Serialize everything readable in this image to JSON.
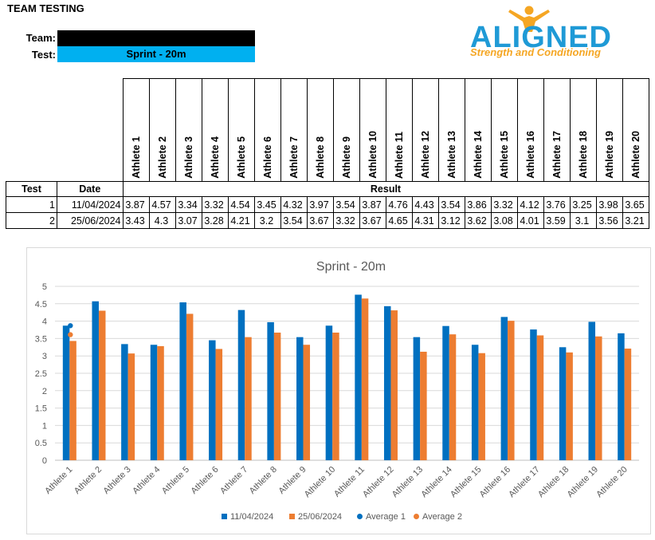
{
  "page": {
    "heading": "TEAM TESTING",
    "team_label": "Team:",
    "test_label": "Test:",
    "test_value": "Sprint - 20m",
    "logo_text": "ALIGNED",
    "logo_subtitle": "Strength and Conditioning"
  },
  "table": {
    "col_test": "Test",
    "col_date": "Date",
    "col_result": "Result",
    "athletes": [
      "Athlete 1",
      "Athlete 2",
      "Athlete 3",
      "Athlete 4",
      "Athlete 5",
      "Athlete 6",
      "Athlete 7",
      "Athlete 8",
      "Athlete 9",
      "Athlete 10",
      "Athlete 11",
      "Athlete 12",
      "Athlete 13",
      "Athlete 14",
      "Athlete 15",
      "Athlete 16",
      "Athlete 17",
      "Athlete 18",
      "Athlete 19",
      "Athlete 20"
    ],
    "rows": [
      {
        "test": "1",
        "date": "11/04/2024",
        "values": [
          "3.87",
          "4.57",
          "3.34",
          "3.32",
          "4.54",
          "3.45",
          "4.32",
          "3.97",
          "3.54",
          "3.87",
          "4.76",
          "4.43",
          "3.54",
          "3.86",
          "3.32",
          "4.12",
          "3.76",
          "3.25",
          "3.98",
          "3.65"
        ]
      },
      {
        "test": "2",
        "date": "25/06/2024",
        "values": [
          "3.43",
          "4.3",
          "3.07",
          "3.28",
          "4.21",
          "3.2",
          "3.54",
          "3.67",
          "3.32",
          "3.67",
          "4.65",
          "4.31",
          "3.12",
          "3.62",
          "3.08",
          "4.01",
          "3.59",
          "3.1",
          "3.56",
          "3.21"
        ]
      }
    ]
  },
  "chart_data": {
    "type": "bar",
    "title": "Sprint - 20m",
    "categories": [
      "Athlete 1",
      "Athlete 2",
      "Athlete 3",
      "Athlete 4",
      "Athlete 5",
      "Athlete 6",
      "Athlete 7",
      "Athlete 8",
      "Athlete 9",
      "Athlete 10",
      "Athlete 11",
      "Athlete 12",
      "Athlete 13",
      "Athlete 14",
      "Athlete 15",
      "Athlete 16",
      "Athlete 17",
      "Athlete 18",
      "Athlete 19",
      "Athlete 20"
    ],
    "series": [
      {
        "name": "11/04/2024",
        "kind": "bar",
        "color": "#0070c0",
        "values": [
          3.87,
          4.57,
          3.34,
          3.32,
          4.54,
          3.45,
          4.32,
          3.97,
          3.54,
          3.87,
          4.76,
          4.43,
          3.54,
          3.86,
          3.32,
          4.12,
          3.76,
          3.25,
          3.98,
          3.65
        ]
      },
      {
        "name": "25/06/2024",
        "kind": "bar",
        "color": "#ed7d31",
        "values": [
          3.43,
          4.3,
          3.07,
          3.28,
          4.21,
          3.2,
          3.54,
          3.67,
          3.32,
          3.67,
          4.65,
          4.31,
          3.12,
          3.62,
          3.08,
          4.01,
          3.59,
          3.1,
          3.56,
          3.21
        ]
      },
      {
        "name": "Average 1",
        "kind": "scatter",
        "color": "#0070c0",
        "category": "Athlete 1",
        "value": 3.87
      },
      {
        "name": "Average 2",
        "kind": "scatter",
        "color": "#ed7d31",
        "category": "Athlete 1",
        "value": 3.61
      }
    ],
    "yticks": [
      "0",
      "0.5",
      "1",
      "1.5",
      "2",
      "2.5",
      "3",
      "3.5",
      "4",
      "4.5",
      "5"
    ],
    "ylim": [
      0,
      5
    ],
    "grid": true,
    "legend_position": "bottom"
  }
}
